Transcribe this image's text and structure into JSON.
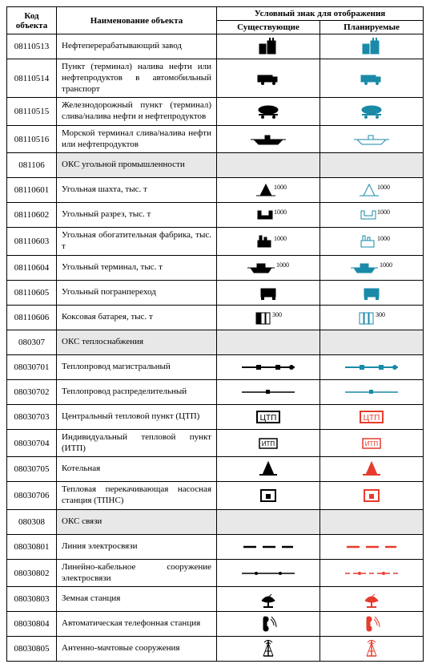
{
  "colors": {
    "exist": "#000000",
    "plan": "#1a8aa8",
    "plan_red": "#e63c2e",
    "section_bg": "#e8e8e8"
  },
  "header": {
    "code": "Код объекта",
    "name": "Наименование объекта",
    "sym": "Условный знак для отображения",
    "col_exist": "Существующие",
    "col_plan": "Планируемые"
  },
  "col_widths": {
    "code": 62,
    "name": 200,
    "sym": 129
  },
  "rows": [
    {
      "code": "08110513",
      "name": "Нефтеперерабатывающий завод",
      "icon": "refinery"
    },
    {
      "code": "08110514",
      "name": "Пункт (терминал) налива нефти или нефтепродуктов в автомобильный транспорт",
      "icon": "truck"
    },
    {
      "code": "08110515",
      "name": "Железнодорожный пункт (терминал) слива/налива нефти и нефтепродуктов",
      "icon": "railtank"
    },
    {
      "code": "08110516",
      "name": "Морской терминал слива/налива нефти или нефтепродуктов",
      "icon": "ship"
    },
    {
      "code": "081106",
      "name": "ОКС угольной промышленности",
      "section": true
    },
    {
      "code": "08110601",
      "name": "Угольная шахта, тыс. т",
      "icon": "mine",
      "label": "1000"
    },
    {
      "code": "08110602",
      "name": "Угольный разрез, тыс. т",
      "icon": "opencut",
      "label": "1000"
    },
    {
      "code": "08110603",
      "name": "Угольная обогатительная фабрика, тыс. т",
      "icon": "plant",
      "label": "1000"
    },
    {
      "code": "08110604",
      "name": "Угольный терминал, тыс. т",
      "icon": "coalterm",
      "label": "1000"
    },
    {
      "code": "08110605",
      "name": "Угольный погранпереход",
      "icon": "border"
    },
    {
      "code": "08110606",
      "name": "Коксовая батарея, тыс. т",
      "icon": "coke",
      "label": "300"
    },
    {
      "code": "080307",
      "name": "ОКС теплоснабжения",
      "section": true
    },
    {
      "code": "08030701",
      "name": "Теплопровод магистральный",
      "icon": "heatmain"
    },
    {
      "code": "08030702",
      "name": "Теплопровод распределительный",
      "icon": "heatdist"
    },
    {
      "code": "08030703",
      "name": "Центральный тепловой пункт (ЦТП)",
      "icon": "ctp",
      "text": "ЦТП",
      "plan_red": true
    },
    {
      "code": "08030704",
      "name": "Индивидуальный тепловой пункт (ИТП)",
      "icon": "itp",
      "text": "ИТП",
      "plan_red": true
    },
    {
      "code": "08030705",
      "name": "Котельная",
      "icon": "boiler",
      "plan_red": true
    },
    {
      "code": "08030706",
      "name": "Тепловая перекачивающая насосная станция (ТПНС)",
      "icon": "pump",
      "plan_red": true
    },
    {
      "code": "080308",
      "name": "ОКС связи",
      "section": true
    },
    {
      "code": "08030801",
      "name": "Линия электросвязи",
      "icon": "commline",
      "plan_red": true
    },
    {
      "code": "08030802",
      "name": "Линейно-кабельное сооружение электросвязи",
      "icon": "cable",
      "plan_red": true
    },
    {
      "code": "08030803",
      "name": "Земная станция",
      "icon": "dish",
      "plan_red": true
    },
    {
      "code": "08030804",
      "name": "Автоматическая телефонная станция",
      "icon": "phone",
      "plan_red": true
    },
    {
      "code": "08030805",
      "name": "Антенно-мачтовые сооружения",
      "icon": "tower",
      "plan_red": true
    }
  ]
}
